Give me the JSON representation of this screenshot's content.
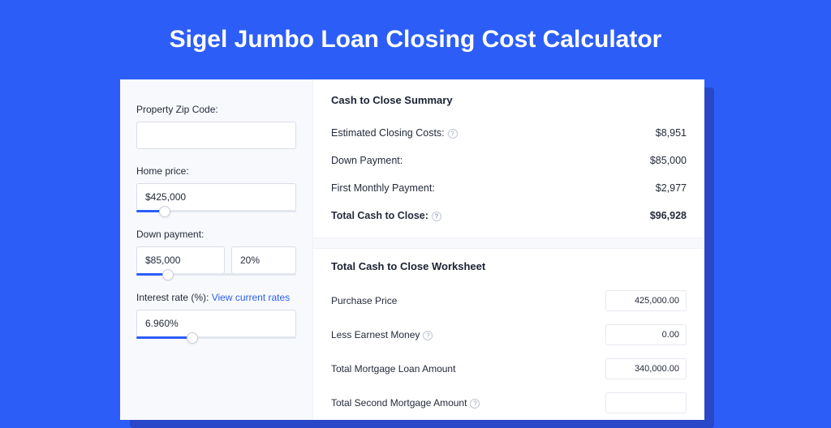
{
  "page": {
    "title": "Sigel Jumbo Loan Closing Cost Calculator",
    "background_color": "#2c5ef7",
    "shadow_color": "#2847c9",
    "card_bg": "#ffffff",
    "sidebar_bg": "#f8f9fc"
  },
  "sidebar": {
    "zip": {
      "label": "Property Zip Code:",
      "value": ""
    },
    "home_price": {
      "label": "Home price:",
      "value": "$425,000",
      "slider_pct": 18
    },
    "down_payment": {
      "label": "Down payment:",
      "amount": "$85,000",
      "percent": "20%",
      "slider_pct": 20
    },
    "interest": {
      "label": "Interest rate (%): ",
      "link_text": "View current rates",
      "value": "6.960%",
      "slider_pct": 35
    }
  },
  "summary": {
    "title": "Cash to Close Summary",
    "rows": [
      {
        "label": "Estimated Closing Costs:",
        "help": true,
        "value": "$8,951"
      },
      {
        "label": "Down Payment:",
        "help": false,
        "value": "$85,000"
      },
      {
        "label": "First Monthly Payment:",
        "help": false,
        "value": "$2,977"
      }
    ],
    "total": {
      "label": "Total Cash to Close:",
      "help": true,
      "value": "$96,928"
    }
  },
  "worksheet": {
    "title": "Total Cash to Close Worksheet",
    "rows": [
      {
        "label": "Purchase Price",
        "help": false,
        "value": "425,000.00"
      },
      {
        "label": "Less Earnest Money",
        "help": true,
        "value": "0.00"
      },
      {
        "label": "Total Mortgage Loan Amount",
        "help": false,
        "value": "340,000.00"
      },
      {
        "label": "Total Second Mortgage Amount",
        "help": true,
        "value": ""
      }
    ]
  },
  "style": {
    "accent": "#2c5ef7",
    "text_color": "#242b3a",
    "border_color": "#d8dde8",
    "track_color": "#e2e6ef"
  }
}
